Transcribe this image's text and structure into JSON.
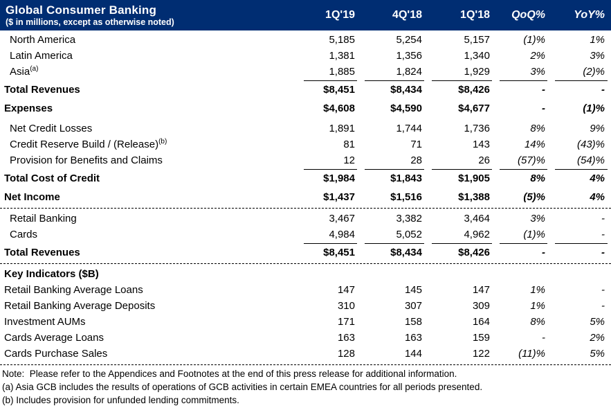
{
  "header": {
    "title": "Global Consumer Banking",
    "subtitle": "($ in millions, except as otherwise noted)",
    "columns": [
      "1Q'19",
      "4Q'18",
      "1Q'18",
      "QoQ%",
      "YoY%"
    ],
    "navy_color": "#002d72"
  },
  "rows": [
    {
      "type": "data",
      "label": "North America",
      "indent": true,
      "values": [
        "5,185",
        "5,254",
        "5,157",
        "(1)%",
        "1%"
      ]
    },
    {
      "type": "data",
      "label": "Latin America",
      "indent": true,
      "values": [
        "1,381",
        "1,356",
        "1,340",
        "2%",
        "3%"
      ]
    },
    {
      "type": "data",
      "label": "Asia",
      "sup": "(a)",
      "indent": true,
      "values": [
        "1,885",
        "1,824",
        "1,929",
        "3%",
        "(2)%"
      ]
    },
    {
      "type": "rule"
    },
    {
      "type": "data",
      "label": "Total Revenues",
      "bold": true,
      "values": [
        "$8,451",
        "$8,434",
        "$8,426",
        "-",
        "-"
      ]
    },
    {
      "type": "gap",
      "size": "sm"
    },
    {
      "type": "data",
      "label": "Expenses",
      "bold": true,
      "values": [
        "$4,608",
        "$4,590",
        "$4,677",
        "-",
        "(1)%"
      ]
    },
    {
      "type": "gap",
      "size": "md"
    },
    {
      "type": "data",
      "label": "Net Credit Losses",
      "indent": true,
      "values": [
        "1,891",
        "1,744",
        "1,736",
        "8%",
        "9%"
      ]
    },
    {
      "type": "data",
      "label": "Credit Reserve Build / (Release)",
      "sup": "(b)",
      "indent": true,
      "values": [
        "81",
        "71",
        "143",
        "14%",
        "(43)%"
      ]
    },
    {
      "type": "data",
      "label": "Provision for Benefits and Claims",
      "indent": true,
      "values": [
        "12",
        "28",
        "26",
        "(57)%",
        "(54)%"
      ]
    },
    {
      "type": "rule"
    },
    {
      "type": "data",
      "label": "Total Cost of Credit",
      "bold": true,
      "values": [
        "$1,984",
        "$1,843",
        "$1,905",
        "8%",
        "4%"
      ]
    },
    {
      "type": "gap",
      "size": "sm"
    },
    {
      "type": "data",
      "label": "Net Income",
      "bold": true,
      "values": [
        "$1,437",
        "$1,516",
        "$1,388",
        "(5)%",
        "4%"
      ]
    },
    {
      "type": "dashed"
    },
    {
      "type": "data",
      "label": "Retail Banking",
      "indent": true,
      "values": [
        "3,467",
        "3,382",
        "3,464",
        "3%",
        "-"
      ]
    },
    {
      "type": "data",
      "label": "Cards",
      "indent": true,
      "values": [
        "4,984",
        "5,052",
        "4,962",
        "(1)%",
        "-"
      ]
    },
    {
      "type": "rule"
    },
    {
      "type": "data",
      "label": "Total Revenues",
      "bold": true,
      "values": [
        "$8,451",
        "$8,434",
        "$8,426",
        "-",
        "-"
      ]
    },
    {
      "type": "dashed"
    },
    {
      "type": "data",
      "label": "Key Indicators ($B)",
      "bold": true,
      "values": [
        "",
        "",
        "",
        "",
        ""
      ]
    },
    {
      "type": "data",
      "label": "Retail Banking Average Loans",
      "values": [
        "147",
        "145",
        "147",
        "1%",
        "-"
      ]
    },
    {
      "type": "data",
      "label": "Retail Banking Average Deposits",
      "values": [
        "310",
        "307",
        "309",
        "1%",
        "-"
      ]
    },
    {
      "type": "data",
      "label": "Investment AUMs",
      "values": [
        "171",
        "158",
        "164",
        "8%",
        "5%"
      ]
    },
    {
      "type": "data",
      "label": "Cards Average Loans",
      "values": [
        "163",
        "163",
        "159",
        "-",
        "2%"
      ]
    },
    {
      "type": "data",
      "label": "Cards Purchase Sales",
      "values": [
        "128",
        "144",
        "122",
        "(11)%",
        "5%"
      ]
    },
    {
      "type": "dashed"
    }
  ],
  "footnotes": [
    "Note:  Please refer to the Appendices and Footnotes at the end of this press release for additional information.",
    "(a) Asia GCB includes the results of operations of GCB activities in certain EMEA countries for all periods presented.",
    "(b) Includes provision for unfunded lending commitments."
  ]
}
